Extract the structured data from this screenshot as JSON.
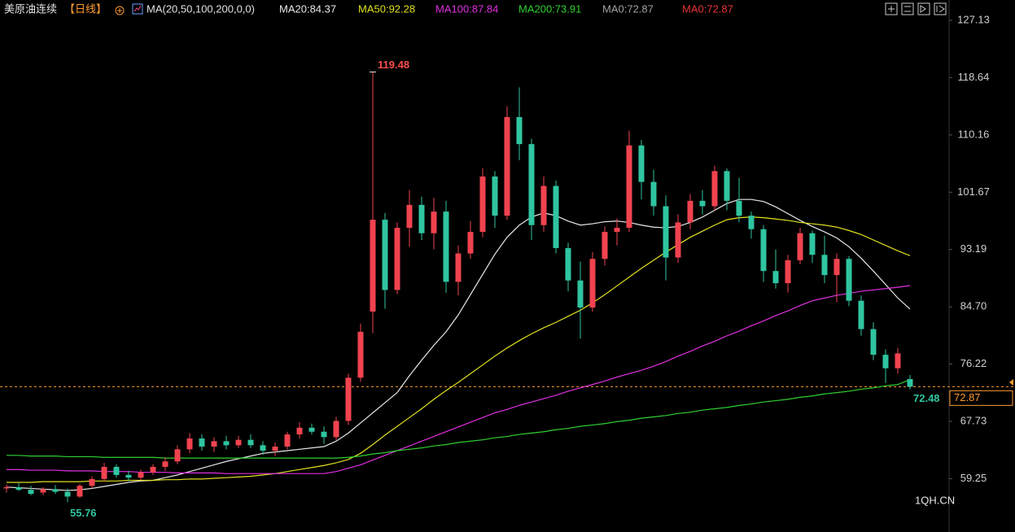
{
  "chart_data": {
    "type": "candlestick",
    "title": "美原油连续",
    "period": "【日线】",
    "indicator": "MA(20,50,100,200,0,0)",
    "categories": [
      null,
      null,
      null,
      null,
      null,
      null,
      null,
      null,
      null,
      null,
      null,
      null,
      null,
      null,
      null,
      null,
      null,
      null,
      null,
      null,
      null,
      null,
      null,
      null,
      null,
      null,
      null,
      null,
      null,
      null,
      null,
      null,
      null,
      null,
      null,
      null,
      null,
      null,
      null,
      null,
      null,
      null,
      null,
      null,
      null,
      null,
      null,
      null,
      null,
      null,
      null,
      null,
      null,
      null,
      null,
      null,
      null,
      null,
      null,
      null,
      null,
      null,
      null,
      null,
      null,
      null,
      null,
      null,
      null,
      null,
      null,
      null,
      null,
      null,
      null
    ],
    "candles": [
      [
        57.8,
        58.4,
        57.2,
        58.0
      ],
      [
        58.0,
        58.6,
        57.4,
        57.6
      ],
      [
        57.6,
        58.2,
        56.8,
        57.0
      ],
      [
        57.2,
        58.0,
        56.8,
        57.7
      ],
      [
        57.7,
        58.3,
        57.0,
        57.3
      ],
      [
        57.3,
        57.8,
        55.76,
        56.6
      ],
      [
        56.6,
        58.5,
        56.4,
        58.2
      ],
      [
        58.2,
        59.6,
        57.8,
        59.2
      ],
      [
        59.2,
        61.6,
        58.8,
        61.0
      ],
      [
        61.0,
        61.4,
        59.4,
        59.8
      ],
      [
        59.8,
        60.4,
        58.9,
        59.4
      ],
      [
        59.4,
        60.6,
        59.0,
        60.2
      ],
      [
        60.2,
        61.4,
        59.8,
        61.0
      ],
      [
        61.0,
        62.4,
        60.4,
        61.8
      ],
      [
        61.8,
        64.2,
        61.4,
        63.6
      ],
      [
        63.6,
        66.0,
        63.0,
        65.2
      ],
      [
        65.2,
        65.8,
        63.4,
        64.0
      ],
      [
        64.0,
        65.4,
        63.2,
        64.8
      ],
      [
        64.8,
        65.6,
        63.6,
        64.2
      ],
      [
        64.2,
        65.6,
        63.8,
        65.0
      ],
      [
        65.0,
        65.8,
        63.8,
        64.2
      ],
      [
        64.2,
        64.8,
        62.8,
        63.4
      ],
      [
        63.4,
        64.6,
        62.6,
        64.0
      ],
      [
        64.0,
        66.2,
        63.6,
        65.8
      ],
      [
        65.8,
        67.6,
        65.2,
        66.8
      ],
      [
        66.8,
        67.4,
        65.8,
        66.2
      ],
      [
        66.2,
        67.0,
        64.4,
        65.4
      ],
      [
        65.4,
        68.4,
        65.0,
        67.8
      ],
      [
        67.8,
        74.8,
        67.2,
        74.2
      ],
      [
        74.2,
        82.2,
        73.6,
        81.0
      ],
      [
        84.0,
        119.48,
        80.8,
        97.6
      ],
      [
        97.6,
        98.6,
        84.4,
        87.2
      ],
      [
        87.2,
        97.2,
        86.6,
        96.4
      ],
      [
        96.4,
        102.0,
        93.6,
        99.8
      ],
      [
        99.8,
        101.0,
        94.6,
        95.6
      ],
      [
        95.6,
        100.8,
        93.2,
        98.8
      ],
      [
        98.8,
        100.4,
        86.8,
        88.4
      ],
      [
        88.4,
        93.8,
        86.4,
        92.6
      ],
      [
        92.6,
        97.4,
        91.8,
        95.8
      ],
      [
        95.8,
        105.2,
        95.0,
        104.0
      ],
      [
        104.0,
        104.8,
        96.4,
        98.2
      ],
      [
        98.2,
        114.4,
        97.6,
        112.8
      ],
      [
        112.8,
        117.2,
        106.4,
        108.8
      ],
      [
        108.8,
        109.6,
        94.6,
        96.8
      ],
      [
        96.8,
        104.0,
        95.8,
        102.6
      ],
      [
        102.6,
        103.4,
        92.6,
        93.4
      ],
      [
        93.4,
        94.2,
        87.0,
        88.6
      ],
      [
        88.6,
        91.4,
        80.0,
        84.6
      ],
      [
        84.6,
        92.8,
        84.0,
        91.8
      ],
      [
        91.8,
        96.6,
        90.8,
        95.8
      ],
      [
        95.8,
        97.8,
        93.8,
        96.4
      ],
      [
        96.4,
        110.8,
        95.8,
        108.6
      ],
      [
        108.6,
        109.4,
        100.6,
        103.2
      ],
      [
        103.2,
        105.0,
        98.2,
        99.6
      ],
      [
        99.6,
        101.2,
        88.6,
        92.0
      ],
      [
        92.0,
        98.4,
        91.2,
        97.2
      ],
      [
        97.2,
        101.4,
        96.2,
        100.4
      ],
      [
        100.4,
        102.0,
        98.4,
        99.6
      ],
      [
        99.6,
        105.6,
        99.0,
        104.8
      ],
      [
        104.8,
        105.2,
        99.0,
        100.4
      ],
      [
        100.4,
        103.8,
        97.2,
        98.2
      ],
      [
        98.2,
        98.8,
        94.8,
        96.2
      ],
      [
        96.2,
        96.8,
        88.4,
        90.0
      ],
      [
        90.0,
        93.2,
        87.4,
        88.2
      ],
      [
        88.2,
        92.4,
        86.8,
        91.6
      ],
      [
        91.6,
        96.4,
        91.0,
        95.6
      ],
      [
        95.6,
        96.0,
        91.2,
        92.4
      ],
      [
        92.4,
        95.2,
        88.2,
        89.4
      ],
      [
        89.4,
        92.6,
        85.4,
        91.8
      ],
      [
        91.8,
        92.2,
        84.8,
        85.6
      ],
      [
        85.6,
        86.4,
        80.4,
        81.4
      ],
      [
        81.4,
        82.4,
        76.8,
        77.6
      ],
      [
        77.6,
        78.4,
        73.4,
        75.6
      ],
      [
        75.6,
        78.6,
        74.8,
        77.8
      ],
      [
        74.0,
        74.6,
        72.48,
        72.87
      ]
    ],
    "up_color": "#f0434f",
    "down_color": "#2fc5a0",
    "series": [
      {
        "name": "MA20:84.37",
        "color": "#e8e8e8",
        "values": [
          58.0,
          57.9,
          57.8,
          57.7,
          57.6,
          57.5,
          57.6,
          57.8,
          58.1,
          58.4,
          58.7,
          58.9,
          59.0,
          59.4,
          59.8,
          60.3,
          60.8,
          61.3,
          61.8,
          62.2,
          62.6,
          63.0,
          63.2,
          63.4,
          63.6,
          63.8,
          64.0,
          64.8,
          66.0,
          67.5,
          69.0,
          70.5,
          72.0,
          74.5,
          76.8,
          79.0,
          81.0,
          83.5,
          86.5,
          89.5,
          92.5,
          95.0,
          96.8,
          98.0,
          98.6,
          98.2,
          97.4,
          96.8,
          97.0,
          97.3,
          97.4,
          97.2,
          96.8,
          96.5,
          96.4,
          96.6,
          97.2,
          98.0,
          99.0,
          100.0,
          100.6,
          100.6,
          100.3,
          99.5,
          98.5,
          97.5,
          96.6,
          95.8,
          94.9,
          93.6,
          91.9,
          90.0,
          88.0,
          86.0,
          84.37
        ]
      },
      {
        "name": "MA50:92.28",
        "color": "#e0e020",
        "values": [
          58.7,
          58.7,
          58.7,
          58.8,
          58.8,
          58.8,
          58.8,
          58.9,
          58.9,
          58.9,
          59.0,
          59.0,
          59.0,
          59.1,
          59.1,
          59.2,
          59.2,
          59.3,
          59.4,
          59.5,
          59.6,
          59.8,
          60.0,
          60.3,
          60.6,
          60.9,
          61.2,
          61.6,
          62.1,
          63.0,
          64.3,
          65.7,
          67.0,
          68.3,
          69.6,
          71.0,
          72.3,
          73.5,
          74.8,
          76.1,
          77.4,
          78.6,
          79.7,
          80.7,
          81.6,
          82.4,
          83.3,
          84.2,
          85.3,
          86.5,
          87.8,
          89.1,
          90.4,
          91.6,
          92.8,
          93.9,
          95.0,
          95.9,
          96.8,
          97.6,
          97.9,
          98.0,
          97.9,
          97.7,
          97.5,
          97.2,
          97.0,
          96.8,
          96.5,
          96.0,
          95.4,
          94.6,
          93.8,
          93.0,
          92.28
        ]
      },
      {
        "name": "MA100:87.84",
        "color": "#e030e0",
        "values": [
          60.6,
          60.6,
          60.5,
          60.5,
          60.5,
          60.4,
          60.4,
          60.4,
          60.3,
          60.3,
          60.3,
          60.2,
          60.2,
          60.2,
          60.1,
          60.1,
          60.1,
          60.1,
          60.0,
          60.0,
          60.0,
          60.0,
          60.0,
          60.0,
          60.0,
          60.0,
          60.0,
          60.3,
          60.8,
          61.3,
          62.0,
          62.7,
          63.4,
          64.1,
          64.8,
          65.5,
          66.2,
          66.9,
          67.6,
          68.3,
          69.0,
          69.5,
          70.1,
          70.6,
          71.1,
          71.6,
          72.2,
          72.7,
          73.2,
          73.7,
          74.3,
          74.8,
          75.3,
          75.9,
          76.6,
          77.4,
          78.1,
          78.9,
          79.6,
          80.4,
          81.1,
          81.9,
          82.6,
          83.4,
          84.1,
          84.9,
          85.6,
          86.0,
          86.4,
          86.7,
          87.0,
          87.2,
          87.4,
          87.6,
          87.84
        ]
      },
      {
        "name": "MA200:73.91",
        "color": "#30d030",
        "values": [
          62.7,
          62.7,
          62.6,
          62.6,
          62.6,
          62.5,
          62.5,
          62.5,
          62.4,
          62.4,
          62.4,
          62.4,
          62.4,
          62.3,
          62.3,
          62.3,
          62.3,
          62.3,
          62.3,
          62.3,
          62.3,
          62.3,
          62.3,
          62.3,
          62.3,
          62.3,
          62.3,
          62.3,
          62.4,
          62.6,
          62.9,
          63.1,
          63.4,
          63.6,
          63.8,
          64.1,
          64.3,
          64.6,
          64.8,
          65.0,
          65.3,
          65.5,
          65.8,
          66.0,
          66.2,
          66.5,
          66.7,
          67.0,
          67.2,
          67.4,
          67.7,
          67.9,
          68.2,
          68.4,
          68.6,
          68.9,
          69.1,
          69.4,
          69.6,
          69.8,
          70.1,
          70.3,
          70.6,
          70.8,
          71.0,
          71.3,
          71.5,
          71.8,
          72.0,
          72.2,
          72.5,
          72.7,
          73.0,
          73.2,
          73.91
        ]
      }
    ],
    "legend_extra": [
      {
        "name": "MA0:72.87",
        "color": "#a0a0a0"
      },
      {
        "name": "MA0:72.87",
        "color": "#e83535"
      }
    ],
    "ylim": [
      51.35,
      130.14
    ],
    "yticks": [
      127.13,
      118.64,
      110.16,
      101.67,
      93.19,
      {
        "value": 84.7,
        "label": "84.70"
      },
      76.22,
      67.73,
      59.25
    ],
    "grid": false,
    "price_line": 72.87,
    "price_tag": "72.87",
    "high_label": "119.48",
    "low_label": "55.76",
    "last_low_label": "72.48",
    "watermark": "1QH.CN"
  }
}
